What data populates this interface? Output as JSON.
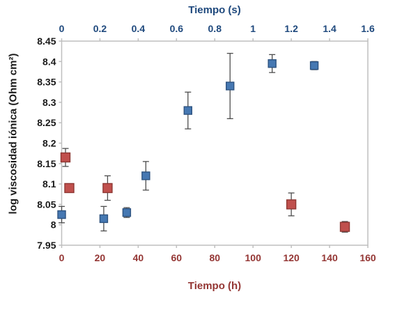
{
  "chart_data": {
    "type": "scatter",
    "title": "",
    "grid": false,
    "legend": null,
    "axis_line_color": "#BFBFBF",
    "error_bar_color": "#4D4D4D",
    "top_axis": {
      "label": "Tiempo (s)",
      "min": 0,
      "max": 1.6,
      "tick_values": [
        0,
        0.2,
        0.4,
        0.6,
        0.8,
        1,
        1.2,
        1.4,
        1.6
      ],
      "tick_labels": [
        "0",
        "0.2",
        "0.4",
        "0.6",
        "0.8",
        "1",
        "1.2",
        "1.4",
        "1.6"
      ],
      "text_color": "#1F497D"
    },
    "bottom_axis": {
      "label": "Tiempo (h)",
      "min": 0,
      "max": 160,
      "tick_values": [
        0,
        20,
        40,
        60,
        80,
        100,
        120,
        140,
        160
      ],
      "tick_labels": [
        "0",
        "20",
        "40",
        "60",
        "80",
        "100",
        "120",
        "140",
        "160"
      ],
      "text_color": "#943634"
    },
    "y_axis": {
      "label": "log viscosidad iónica (Ohm cm²)",
      "min": 7.95,
      "max": 8.45,
      "tick_values": [
        8.45,
        8.4,
        8.35,
        8.3,
        8.25,
        8.2,
        8.15,
        8.1,
        8.05,
        8,
        7.95
      ],
      "tick_labels": [
        "8.45",
        "8.4",
        "8.35",
        "8.3",
        "8.25",
        "8.2",
        "8.15",
        "8.1",
        "8.05",
        "8",
        "7.95"
      ],
      "text_color": "#1A1A1A"
    },
    "series": [
      {
        "name": "blue-squares-seconds",
        "x_axis": "top",
        "marker": "square",
        "fill": "#4678B2",
        "stroke": "#2E5380",
        "marker_size": 11,
        "x": [
          0,
          0.22,
          0.34,
          0.44,
          0.66,
          0.88,
          1.1,
          1.32
        ],
        "y": [
          8.025,
          8.015,
          8.03,
          8.12,
          8.28,
          8.34,
          8.395,
          8.39
        ],
        "yerr": [
          0.02,
          0.03,
          0.012,
          0.035,
          0.045,
          0.08,
          0.022,
          0.01
        ]
      },
      {
        "name": "red-squares-hours",
        "x_axis": "bottom",
        "marker": "square",
        "fill": "#C0504D",
        "stroke": "#8E3733",
        "marker_size": 13,
        "x": [
          2,
          4,
          24,
          120,
          148
        ],
        "y": [
          8.165,
          8.09,
          8.09,
          8.05,
          7.995
        ],
        "yerr": [
          0.022,
          0,
          0.03,
          0.028,
          0.013
        ]
      }
    ]
  }
}
